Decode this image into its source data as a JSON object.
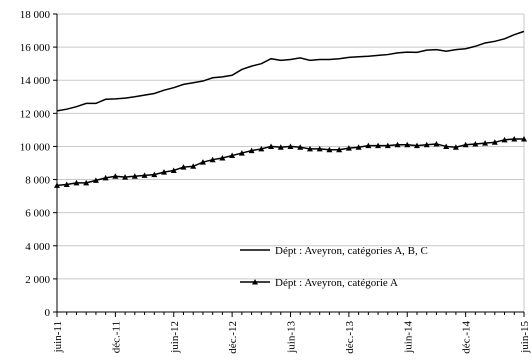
{
  "chart_data": {
    "type": "line",
    "title": "",
    "xlabel": "",
    "ylabel": "",
    "ylim": [
      0,
      18000
    ],
    "yticks": [
      0,
      2000,
      4000,
      6000,
      8000,
      10000,
      12000,
      14000,
      16000,
      18000
    ],
    "ytick_labels": [
      "0",
      "2 000",
      "4 000",
      "6 000",
      "8 000",
      "10 000",
      "12 000",
      "14 000",
      "16 000",
      "18 000"
    ],
    "xtick_labels": [
      "juin-11",
      "déc.-11",
      "juin-12",
      "déc.-12",
      "juin-13",
      "déc.-13",
      "juin-14",
      "déc.-14",
      "juin-15"
    ],
    "x": [
      "2011-06",
      "2011-07",
      "2011-08",
      "2011-09",
      "2011-10",
      "2011-11",
      "2011-12",
      "2012-01",
      "2012-02",
      "2012-03",
      "2012-04",
      "2012-05",
      "2012-06",
      "2012-07",
      "2012-08",
      "2012-09",
      "2012-10",
      "2012-11",
      "2012-12",
      "2013-01",
      "2013-02",
      "2013-03",
      "2013-04",
      "2013-05",
      "2013-06",
      "2013-07",
      "2013-08",
      "2013-09",
      "2013-10",
      "2013-11",
      "2013-12",
      "2014-01",
      "2014-02",
      "2014-03",
      "2014-04",
      "2014-05",
      "2014-06",
      "2014-07",
      "2014-08",
      "2014-09",
      "2014-10",
      "2014-11",
      "2014-12",
      "2015-01",
      "2015-02",
      "2015-03",
      "2015-04",
      "2015-05",
      "2015-06"
    ],
    "grid": true,
    "legend_position": "bottom-right",
    "series": [
      {
        "name": "Dépt : Aveyron, catégories A, B, C",
        "marker": "none",
        "color": "#000000",
        "values": [
          12150,
          12250,
          12400,
          12600,
          12600,
          12850,
          12870,
          12920,
          13000,
          13100,
          13200,
          13400,
          13550,
          13750,
          13850,
          13950,
          14150,
          14200,
          14300,
          14650,
          14850,
          15000,
          15300,
          15200,
          15250,
          15350,
          15200,
          15250,
          15250,
          15300,
          15380,
          15420,
          15450,
          15500,
          15550,
          15650,
          15700,
          15680,
          15820,
          15850,
          15750,
          15850,
          15900,
          16050,
          16250,
          16350,
          16500,
          16750,
          16950
        ]
      },
      {
        "name": "Dépt : Aveyron, catégorie A",
        "marker": "triangle",
        "color": "#000000",
        "values": [
          7650,
          7700,
          7800,
          7800,
          7950,
          8100,
          8200,
          8150,
          8200,
          8250,
          8300,
          8450,
          8550,
          8750,
          8800,
          9050,
          9200,
          9300,
          9450,
          9600,
          9750,
          9850,
          10000,
          9950,
          10000,
          9950,
          9850,
          9850,
          9800,
          9800,
          9900,
          9950,
          10050,
          10050,
          10050,
          10100,
          10100,
          10050,
          10100,
          10150,
          10000,
          9950,
          10100,
          10150,
          10200,
          10250,
          10400,
          10450,
          10450
        ]
      }
    ]
  }
}
